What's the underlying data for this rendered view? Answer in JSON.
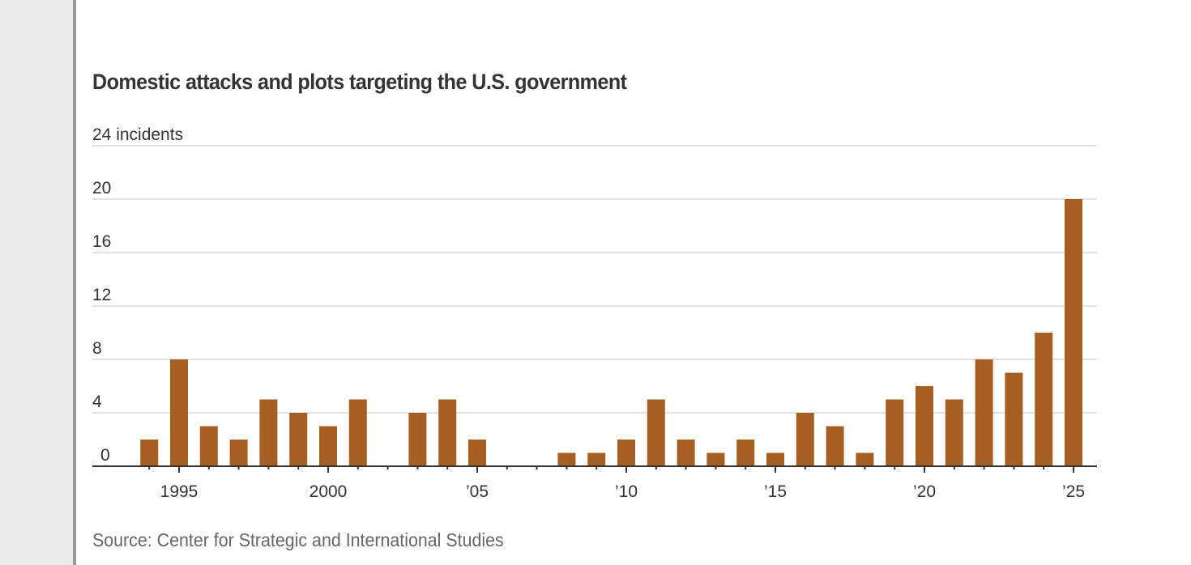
{
  "chart_data": {
    "type": "bar",
    "title": "Domestic attacks and plots targeting the U.S. government",
    "ylabel": "incidents",
    "xlabel": "",
    "source": "Source: Center for Strategic and International Studies",
    "ylim": [
      0,
      24
    ],
    "yticks": [
      0,
      4,
      8,
      12,
      16,
      20,
      24
    ],
    "ytick_labels": [
      "0",
      "4",
      "8",
      "12",
      "16",
      "20",
      "24 incidents"
    ],
    "xlim": [
      1993,
      2026
    ],
    "xticks": [
      1995,
      2000,
      2005,
      2010,
      2015,
      2020,
      2025
    ],
    "xtick_labels": [
      "1995",
      "2000",
      "’05",
      "’10",
      "’15",
      "’20",
      "’25"
    ],
    "grid": true,
    "legend": "none",
    "bar_color": "#a65f22",
    "categories": [
      1994,
      1995,
      1996,
      1997,
      1998,
      1999,
      2000,
      2001,
      2002,
      2003,
      2004,
      2005,
      2006,
      2007,
      2008,
      2009,
      2010,
      2011,
      2012,
      2013,
      2014,
      2015,
      2016,
      2017,
      2018,
      2019,
      2020,
      2021,
      2022,
      2023,
      2024,
      2025
    ],
    "values": [
      2,
      8,
      3,
      2,
      5,
      4,
      3,
      5,
      0,
      4,
      5,
      2,
      0,
      0,
      1,
      1,
      2,
      5,
      2,
      1,
      2,
      1,
      4,
      3,
      1,
      5,
      6,
      5,
      8,
      7,
      10,
      20
    ]
  }
}
